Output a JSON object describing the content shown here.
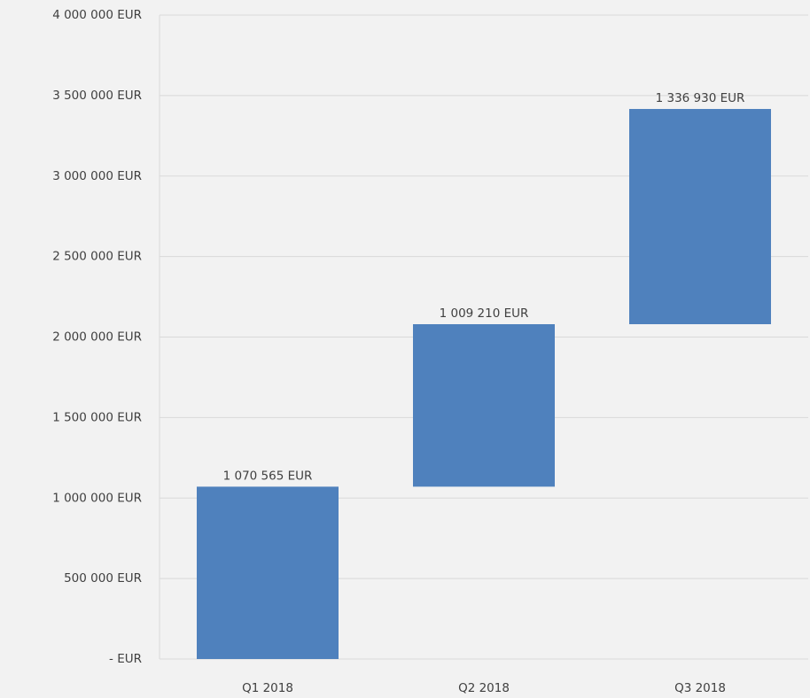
{
  "chart_data": {
    "type": "waterfall",
    "categories": [
      "Q1 2018",
      "Q2 2018",
      "Q3 2018"
    ],
    "values": [
      1070565,
      1009210,
      1336930
    ],
    "value_labels": [
      "1 070 565 EUR",
      "1 009 210 EUR",
      "1 336 930 EUR"
    ],
    "color": "#4f81bd",
    "ylim": [
      0,
      4000000
    ],
    "yticks": [
      {
        "value": 0,
        "label": "- EUR"
      },
      {
        "value": 500000,
        "label": "500 000 EUR"
      },
      {
        "value": 1000000,
        "label": "1 000 000 EUR"
      },
      {
        "value": 1500000,
        "label": "1 500 000 EUR"
      },
      {
        "value": 2000000,
        "label": "2 000 000 EUR"
      },
      {
        "value": 2500000,
        "label": "2 500 000 EUR"
      },
      {
        "value": 3000000,
        "label": "3 000 000 EUR"
      },
      {
        "value": 3500000,
        "label": "3 500 000 EUR"
      },
      {
        "value": 4000000,
        "label": "4 000 000 EUR"
      }
    ],
    "grid": true
  }
}
